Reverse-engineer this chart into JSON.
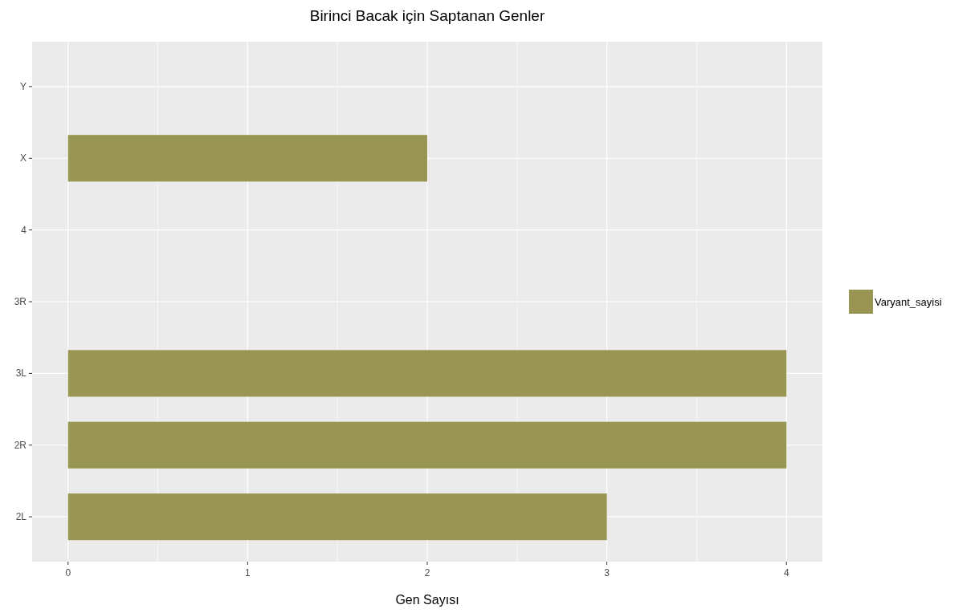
{
  "chart_data": {
    "type": "bar",
    "orientation": "horizontal",
    "title": "Birinci Bacak için Saptanan Genler",
    "xlabel": "Gen Sayısı",
    "categories": [
      "Y",
      "X",
      "4",
      "3R",
      "3L",
      "2R",
      "2L"
    ],
    "series": [
      {
        "name": "Varyant_sayisi",
        "color": "#999552",
        "values": [
          0,
          2,
          0,
          0,
          4,
          4,
          3
        ]
      }
    ],
    "xlim": [
      -0.2,
      4.2
    ],
    "xticks": [
      0,
      1,
      2,
      3,
      4
    ],
    "grid": true,
    "legend": "right"
  }
}
